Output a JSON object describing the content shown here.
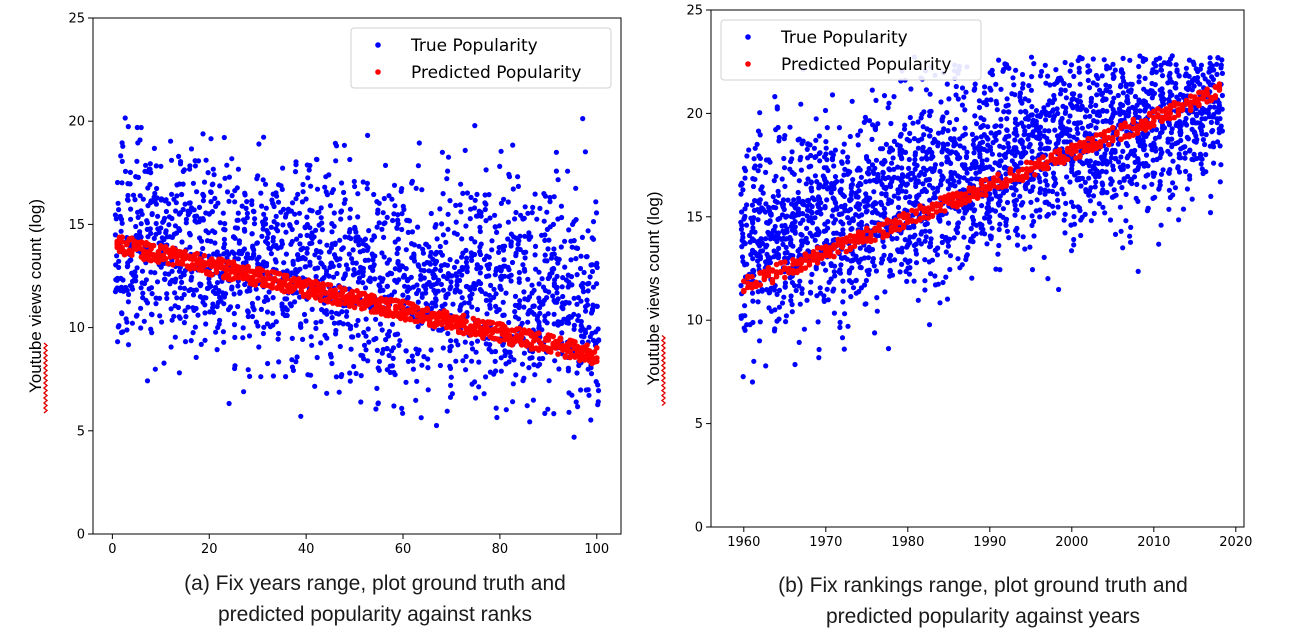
{
  "colors": {
    "true_points": "#0000ff",
    "predicted_points": "#ff0000",
    "axis": "#000000",
    "squiggle": "#e00000"
  },
  "chart_data": [
    {
      "type": "scatter",
      "caption_line1": "(a) Fix years range, plot ground truth and",
      "caption_line2": "predicted popularity against ranks",
      "ylabel": "Youtube views count (log)",
      "xlabel": "",
      "xlim": [
        -4,
        105
      ],
      "ylim": [
        0,
        25
      ],
      "xticks": [
        0,
        20,
        40,
        60,
        80,
        100
      ],
      "yticks": [
        0,
        5,
        10,
        15,
        20,
        25
      ],
      "grid": false,
      "legend": {
        "placement": "top-right",
        "entries": [
          "True Popularity",
          "Predicted Popularity"
        ]
      },
      "series": [
        {
          "name": "True Popularity",
          "kind": "scatter",
          "x_range": [
            1,
            100
          ],
          "samples_per_x": 20,
          "trend": {
            "intercept": 14.2,
            "slope": -0.03
          },
          "spread_sd": 2.6,
          "y_clip": [
            2.5,
            20.2
          ]
        },
        {
          "name": "Predicted Popularity",
          "kind": "band",
          "x_range": [
            1,
            100
          ],
          "line": {
            "intercept": 14.05,
            "slope": -0.0545
          },
          "band_halfwidth": 0.45
        }
      ]
    },
    {
      "type": "scatter",
      "caption_line1": "(b) Fix rankings range, plot ground truth and",
      "caption_line2": "predicted popularity against years",
      "ylabel": "Youtube views count (log)",
      "xlabel": "",
      "xlim": [
        1956,
        2021
      ],
      "ylim": [
        0,
        25
      ],
      "xticks": [
        1960,
        1970,
        1980,
        1990,
        2000,
        2010,
        2020
      ],
      "yticks": [
        0,
        5,
        10,
        15,
        20,
        25
      ],
      "grid": false,
      "legend": {
        "placement": "top-left",
        "entries": [
          "True Popularity",
          "Predicted Popularity"
        ]
      },
      "series": [
        {
          "name": "True Popularity",
          "kind": "scatter",
          "x_range": [
            1960,
            2018
          ],
          "samples_per_x": 45,
          "trend": {
            "intercept": 13.5,
            "slope": 0.13
          },
          "spread_sd": 2.4,
          "y_clip": [
            2.7,
            22.8
          ]
        },
        {
          "name": "Predicted Popularity",
          "kind": "band",
          "x_range": [
            1960,
            2018
          ],
          "line": {
            "intercept": 11.65,
            "slope": 0.162
          },
          "band_halfwidth": 0.4
        }
      ]
    }
  ]
}
